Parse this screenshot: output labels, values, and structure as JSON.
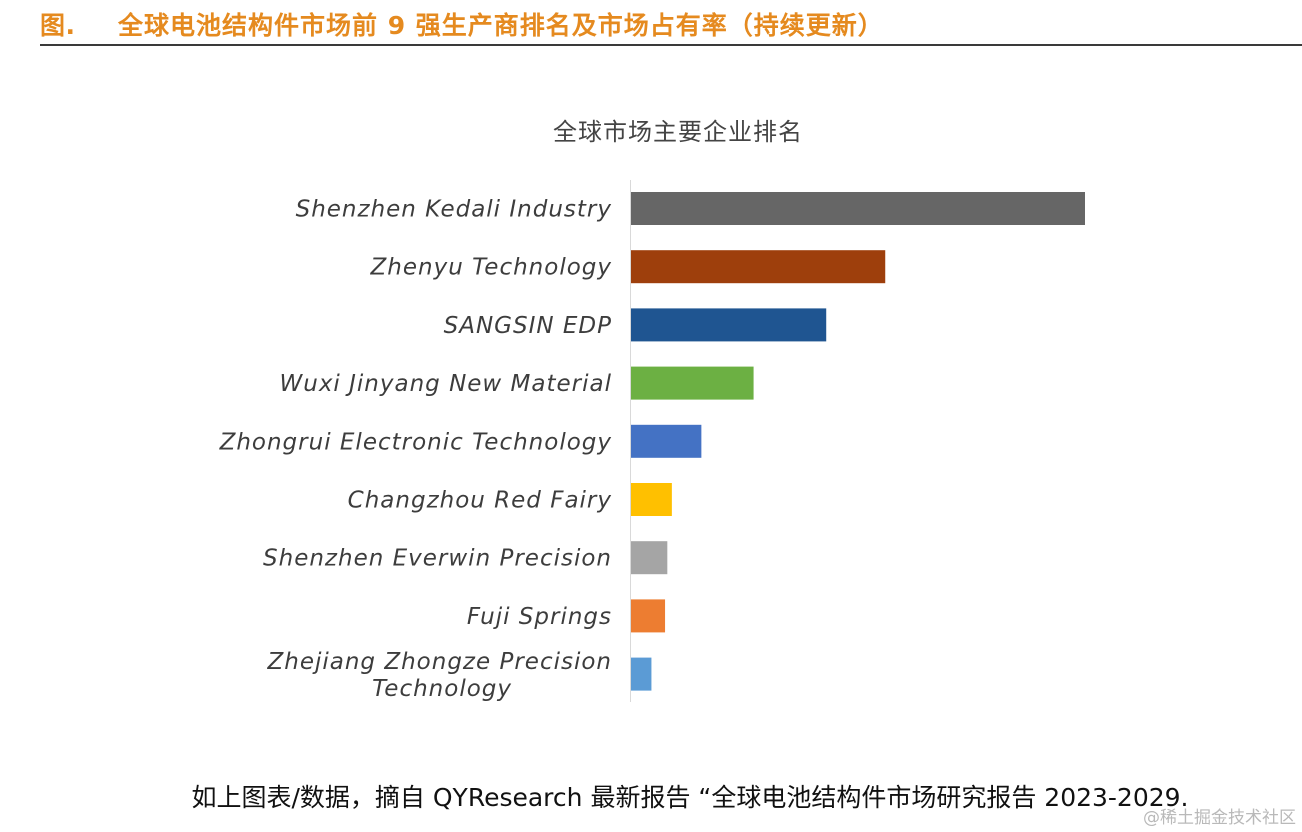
{
  "figure": {
    "label": "图.",
    "title": "全球电池结构件市场前 9 强生产商排名及市场占有率（持续更新）"
  },
  "chart_data": {
    "type": "bar",
    "orientation": "horizontal",
    "title": "全球市场主要企业排名",
    "categories": [
      "Shenzhen Kedali Industry",
      "Zhenyu Technology",
      "SANGSIN EDP",
      "Wuxi Jinyang New Material",
      "Zhongrui Electronic Technology",
      "Changzhou Red Fairy",
      "Shenzhen Everwin Precision",
      "Fuji Springs",
      "Zhejiang Zhongze Precision Technology"
    ],
    "values": [
      100,
      56,
      43,
      27,
      15.5,
      9,
      8,
      7.5,
      4.5
    ],
    "colors": [
      "#666666",
      "#9e3f0c",
      "#1f5591",
      "#6cb043",
      "#4472c4",
      "#ffc000",
      "#a5a5a5",
      "#ed7d31",
      "#5b9bd5"
    ],
    "grid": false,
    "legend": "none"
  },
  "source_note": "如上图表/数据，摘自 QYResearch 最新报告 “全球电池结构件市场研究报告 2023-2029.",
  "watermark": "@稀土掘金技术社区"
}
